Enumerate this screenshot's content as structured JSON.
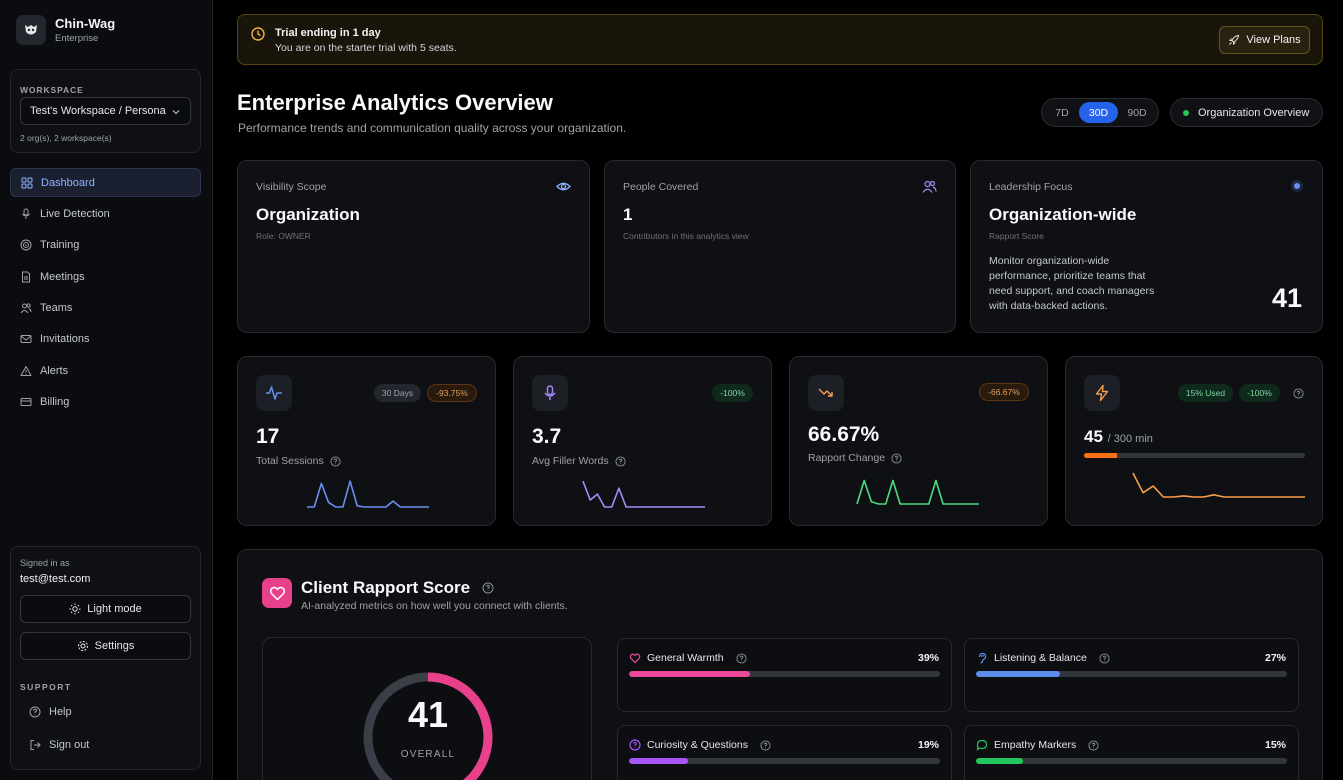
{
  "brand": {
    "name": "Chin-Wag",
    "plan": "Enterprise"
  },
  "workspace": {
    "label": "WORKSPACE",
    "selected": "Test's Workspace / Persona",
    "count": "2 org(s), 2 workspace(s)"
  },
  "nav": [
    {
      "label": "Dashboard",
      "icon": "grid-icon",
      "active": true
    },
    {
      "label": "Live Detection",
      "icon": "mic-icon"
    },
    {
      "label": "Training",
      "icon": "target-icon"
    },
    {
      "label": "Meetings",
      "icon": "document-icon"
    },
    {
      "label": "Teams",
      "icon": "users-icon"
    },
    {
      "label": "Invitations",
      "icon": "mail-icon"
    },
    {
      "label": "Alerts",
      "icon": "alert-triangle-icon"
    },
    {
      "label": "Billing",
      "icon": "credit-card-icon"
    }
  ],
  "account": {
    "signed_label": "Signed in as",
    "email": "test@test.com",
    "light_mode": "Light mode",
    "settings": "Settings",
    "support_label": "SUPPORT",
    "help": "Help",
    "sign_out": "Sign out"
  },
  "trial": {
    "title": "Trial ending in 1 day",
    "subtitle": "You are on the starter trial with 5 seats.",
    "button": "View Plans"
  },
  "header": {
    "title": "Enterprise Analytics Overview",
    "subtitle": "Performance trends and communication quality across your organization.",
    "ranges": [
      "7D",
      "30D",
      "90D"
    ],
    "selected_range": "30D",
    "scope_pill": "Organization Overview"
  },
  "info_cards": {
    "visibility": {
      "label": "Visibility Scope",
      "value": "Organization",
      "note": "Role: OWNER"
    },
    "people": {
      "label": "People Covered",
      "value": "1",
      "note": "Contributors in this analytics view"
    },
    "leadership": {
      "label": "Leadership Focus",
      "value": "Organization-wide",
      "note": "Rapport Score",
      "description": "Monitor organization-wide performance, prioritize teams that need support, and coach managers with data-backed actions.",
      "score": "41"
    }
  },
  "stats": {
    "sessions": {
      "value": "17",
      "label": "Total Sessions",
      "badge_period": "30 Days",
      "badge_change": "-93.75%",
      "spark": [
        0,
        0,
        1,
        0.2,
        0,
        0,
        1.1,
        0.05,
        0,
        0,
        0,
        0,
        0.25,
        0,
        0,
        0,
        0,
        0
      ],
      "color": "#6b8ff0"
    },
    "filler": {
      "value": "3.7",
      "label": "Avg Filler Words",
      "badge_change": "-100%",
      "spark": [
        1.1,
        0.3,
        0.55,
        0,
        0,
        0.8,
        0,
        0,
        0,
        0,
        0,
        0,
        0,
        0,
        0,
        0,
        0,
        0
      ],
      "color": "#a78bfa"
    },
    "rapport": {
      "value": "66.67%",
      "label": "Rapport Change",
      "badge_change": "-66.67%",
      "spark": [
        0,
        1,
        0.1,
        0,
        0,
        1,
        0,
        0,
        0,
        0,
        0,
        1,
        0,
        0,
        0,
        0,
        0,
        0
      ],
      "color": "#4ade80"
    },
    "usage": {
      "value": "45",
      "suffix": "/ 300 min",
      "badge_used": "15% Used",
      "badge_change": "-100%",
      "fraction": 0.15,
      "spark": [
        1.1,
        0.2,
        0.5,
        0,
        0,
        0.05,
        0,
        0,
        0.1,
        0,
        0,
        0,
        0,
        0,
        0,
        0,
        0,
        0
      ],
      "color": "#f59e4b"
    }
  },
  "rapport": {
    "title": "Client Rapport Score",
    "subtitle": "AI-analyzed metrics on how well you connect with clients.",
    "overall_value": "41",
    "overall_label": "OVERALL",
    "overall_fraction": 0.41,
    "metrics": [
      {
        "name": "General Warmth",
        "pct": "39%",
        "fraction": 0.39,
        "color": "#ec4899",
        "icon": "heart-icon"
      },
      {
        "name": "Listening & Balance",
        "pct": "27%",
        "fraction": 0.27,
        "color": "#5b8def",
        "icon": "ear-icon"
      },
      {
        "name": "Curiosity & Questions",
        "pct": "19%",
        "fraction": 0.19,
        "color": "#a855f7",
        "icon": "question-circle-icon"
      },
      {
        "name": "Empathy Markers",
        "pct": "15%",
        "fraction": 0.15,
        "color": "#22c55e",
        "icon": "chat-bubble-icon"
      }
    ]
  }
}
